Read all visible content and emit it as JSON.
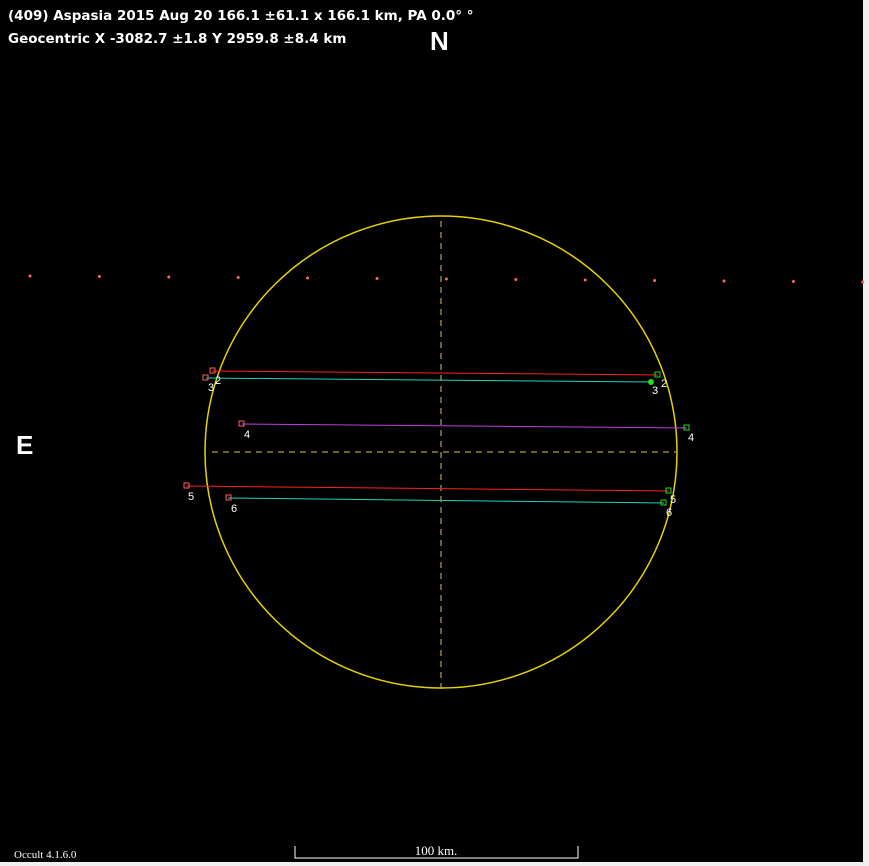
{
  "header": {
    "line1": "(409) Aspasia  2015 Aug 20   166.1 ±61.1 x 166.1 km, PA 0.0° °",
    "line2": "Geocentric X  -3082.7 ±1.8  Y 2959.8 ±8.4 km"
  },
  "compass": {
    "north": "N",
    "east": "E"
  },
  "chords": [
    {
      "label": "2"
    },
    {
      "label": "3"
    },
    {
      "label": "4"
    },
    {
      "label": "5"
    },
    {
      "label": "6"
    }
  ],
  "footer": {
    "version": "Occult 4.1.6.0",
    "scale": "100 km."
  }
}
